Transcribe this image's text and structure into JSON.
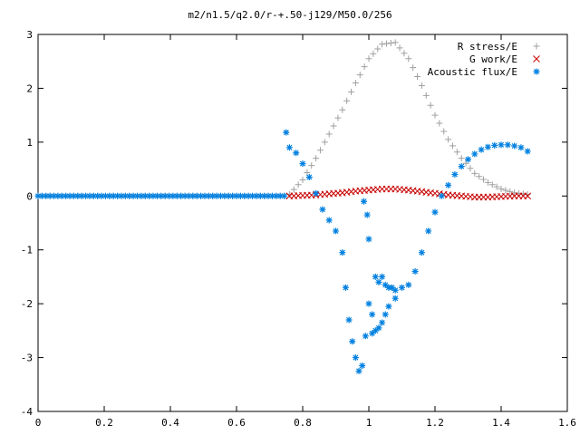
{
  "chart_data": {
    "type": "scatter",
    "title": "m2/n1.5/q2.0/r-+.50-j129/M50.0/256",
    "xlabel": "",
    "ylabel": "",
    "xlim": [
      0,
      1.6
    ],
    "ylim": [
      -4,
      3
    ],
    "x_ticks": [
      "0",
      "0.2",
      "0.4",
      "0.6",
      "0.8",
      "1",
      "1.2",
      "1.4",
      "1.6"
    ],
    "y_ticks": [
      "-4",
      "-3",
      "-2",
      "-1",
      "0",
      "1",
      "2",
      "3"
    ],
    "grid": false,
    "legend_position": "top-right",
    "series": [
      {
        "name": "R stress/E",
        "marker": "plus",
        "color": "#a0a0a0",
        "x": [
          0.76,
          0.8,
          0.84,
          0.88,
          0.92,
          0.96,
          1.0,
          1.04,
          1.08,
          1.12,
          1.16,
          1.2,
          1.24,
          1.28,
          1.32,
          1.36,
          1.4,
          1.44,
          1.48
        ],
        "y": [
          0.03,
          0.3,
          0.7,
          1.15,
          1.6,
          2.1,
          2.55,
          2.82,
          2.85,
          2.55,
          2.05,
          1.5,
          1.05,
          0.7,
          0.42,
          0.25,
          0.13,
          0.06,
          0.03
        ]
      },
      {
        "name": "G work/E",
        "marker": "cross",
        "color": "#c80000",
        "x": [
          0.76,
          0.8,
          0.84,
          0.88,
          0.92,
          0.96,
          1.0,
          1.04,
          1.08,
          1.12,
          1.16,
          1.2,
          1.24,
          1.28,
          1.32,
          1.36,
          1.4,
          1.44,
          1.48
        ],
        "y": [
          0.0,
          0.01,
          0.02,
          0.04,
          0.06,
          0.09,
          0.11,
          0.13,
          0.13,
          0.11,
          0.08,
          0.05,
          0.02,
          0.0,
          -0.02,
          -0.02,
          -0.01,
          0.0,
          0.0
        ]
      },
      {
        "name": "Acoustic flux/E",
        "marker": "star",
        "color": "#0080e0",
        "x": [
          0.75,
          0.76,
          0.78,
          0.8,
          0.82,
          0.84,
          0.86,
          0.88,
          0.9,
          0.92,
          0.93,
          0.94,
          0.95,
          0.96,
          0.97,
          0.98,
          0.99,
          1.0,
          1.01,
          1.02,
          1.03,
          1.04,
          1.05,
          1.06,
          1.07,
          1.08,
          0.985,
          0.995,
          1.0,
          1.01,
          1.02,
          1.03,
          1.04,
          1.05,
          1.06,
          1.08,
          1.1,
          1.12,
          1.14,
          1.16,
          1.18,
          1.2,
          1.22,
          1.24,
          1.26,
          1.28,
          1.3,
          1.32,
          1.34,
          1.36,
          1.38,
          1.4,
          1.42,
          1.44,
          1.46,
          1.48
        ],
        "y": [
          1.18,
          0.9,
          0.8,
          0.6,
          0.35,
          0.05,
          -0.25,
          -0.45,
          -0.65,
          -1.05,
          -1.7,
          -2.3,
          -2.7,
          -3.0,
          -3.25,
          -3.15,
          -2.6,
          -2.0,
          -2.2,
          -1.5,
          -1.6,
          -1.5,
          -1.65,
          -1.7,
          -1.7,
          -1.75,
          -0.1,
          -0.35,
          -0.8,
          -2.55,
          -2.5,
          -2.45,
          -2.35,
          -2.2,
          -2.05,
          -1.9,
          -1.7,
          -1.65,
          -1.4,
          -1.05,
          -0.65,
          -0.3,
          0.0,
          0.2,
          0.4,
          0.55,
          0.68,
          0.78,
          0.86,
          0.91,
          0.94,
          0.95,
          0.95,
          0.93,
          0.9,
          0.83
        ]
      }
    ],
    "baseline_series_note_x": [
      0,
      0.75
    ],
    "zero_line_markers": true
  }
}
